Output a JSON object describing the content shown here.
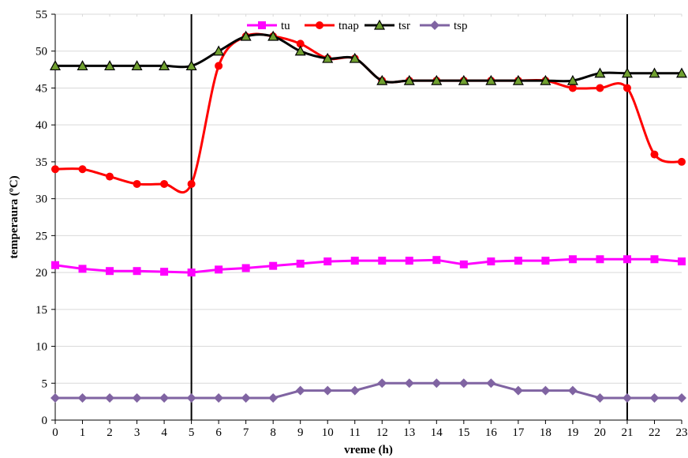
{
  "chart_data": {
    "type": "line",
    "title": "",
    "xlabel": "vreme (h)",
    "ylabel": "temperaura (ºC)",
    "x": [
      0,
      1,
      2,
      3,
      4,
      5,
      6,
      7,
      8,
      9,
      10,
      11,
      12,
      13,
      14,
      15,
      16,
      17,
      18,
      19,
      20,
      21,
      22,
      23
    ],
    "xlim": [
      0,
      23
    ],
    "ylim": [
      0,
      55
    ],
    "yticks": [
      0,
      5,
      10,
      15,
      20,
      25,
      30,
      35,
      40,
      45,
      50,
      55
    ],
    "grid": "horizontal",
    "legend_position": "top",
    "vertical_lines": [
      5,
      21
    ],
    "series": [
      {
        "name": "tu",
        "color": "#ff00ff",
        "marker": "square",
        "smooth": false,
        "values": [
          21,
          20.5,
          20.2,
          20.2,
          20.1,
          20,
          20.4,
          20.6,
          20.9,
          21.2,
          21.5,
          21.6,
          21.6,
          21.6,
          21.7,
          21.1,
          21.5,
          21.6,
          21.6,
          21.8,
          21.8,
          21.8,
          21.8,
          21.5
        ]
      },
      {
        "name": "tnap",
        "color": "#ff0000",
        "marker": "circle",
        "smooth": true,
        "values": [
          34,
          34,
          33,
          32,
          32,
          32,
          48,
          52,
          52,
          51,
          49,
          49,
          46,
          46,
          46,
          46,
          46,
          46,
          46,
          45,
          45,
          45,
          36,
          35
        ]
      },
      {
        "name": "tsr",
        "color": "#000000",
        "marker": "triangle",
        "marker_fill": "#70a030",
        "smooth": true,
        "values": [
          48,
          48,
          48,
          48,
          48,
          48,
          50,
          52,
          52,
          50,
          49,
          49,
          46,
          46,
          46,
          46,
          46,
          46,
          46,
          46,
          47,
          47,
          47,
          47
        ]
      },
      {
        "name": "tsp",
        "color": "#8064a2",
        "marker": "diamond",
        "smooth": false,
        "values": [
          3,
          3,
          3,
          3,
          3,
          3,
          3,
          3,
          3,
          4,
          4,
          4,
          5,
          5,
          5,
          5,
          5,
          4,
          4,
          4,
          3,
          3,
          3,
          3
        ]
      }
    ]
  }
}
